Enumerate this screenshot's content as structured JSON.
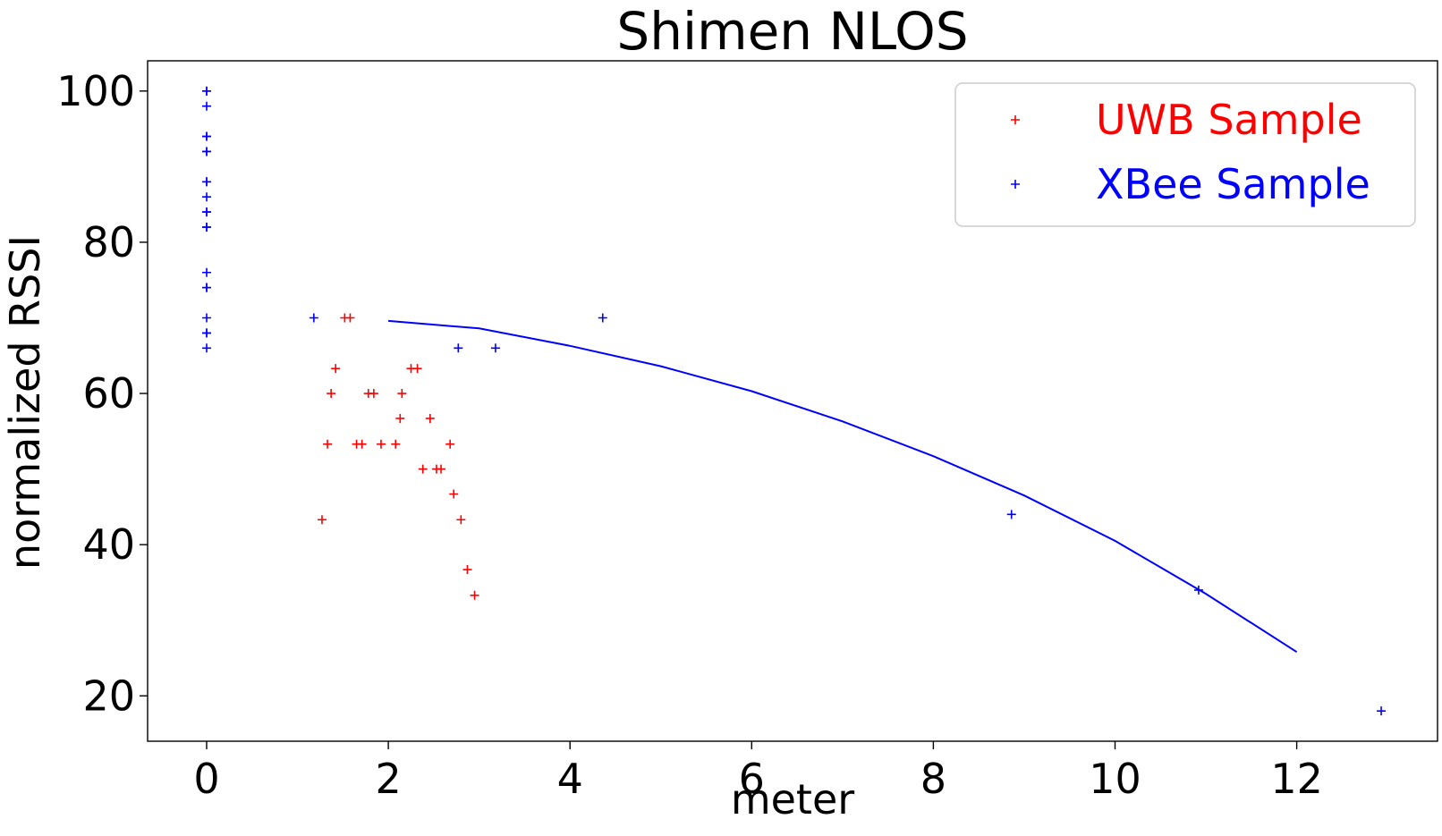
{
  "chart_data": {
    "type": "scatter",
    "title": "Shimen NLOS",
    "xlabel": "meter",
    "ylabel": "normalized RSSI",
    "xlim": [
      -0.65,
      13.55
    ],
    "ylim": [
      14,
      104
    ],
    "xticks": [
      0,
      2,
      4,
      6,
      8,
      10,
      12
    ],
    "yticks": [
      20,
      40,
      60,
      80,
      100
    ],
    "grid": false,
    "legend": {
      "placement": "top-right",
      "entries": [
        "UWB Sample",
        "XBee Sample"
      ]
    },
    "series": [
      {
        "name": "UWB Sample",
        "color": "#ff0000",
        "marker": "plus",
        "points": [
          [
            1.27,
            43.3
          ],
          [
            1.33,
            53.3
          ],
          [
            1.37,
            60.0
          ],
          [
            1.42,
            63.3
          ],
          [
            1.52,
            70.0
          ],
          [
            1.58,
            70.0
          ],
          [
            1.65,
            53.3
          ],
          [
            1.71,
            53.3
          ],
          [
            1.78,
            60.0
          ],
          [
            1.84,
            60.0
          ],
          [
            1.92,
            53.3
          ],
          [
            2.08,
            53.3
          ],
          [
            2.13,
            56.7
          ],
          [
            2.15,
            60.0
          ],
          [
            2.25,
            63.3
          ],
          [
            2.32,
            63.3
          ],
          [
            2.38,
            50.0
          ],
          [
            2.46,
            56.7
          ],
          [
            2.53,
            50.0
          ],
          [
            2.58,
            50.0
          ],
          [
            2.68,
            53.3
          ],
          [
            2.72,
            46.7
          ],
          [
            2.8,
            43.3
          ],
          [
            2.87,
            36.7
          ],
          [
            2.95,
            33.3
          ]
        ]
      },
      {
        "name": "XBee Sample",
        "color": "#0000ff",
        "marker": "plus",
        "points": [
          [
            0,
            100
          ],
          [
            0,
            100
          ],
          [
            0,
            98
          ],
          [
            0,
            94
          ],
          [
            0,
            94
          ],
          [
            0,
            92
          ],
          [
            0,
            92
          ],
          [
            0,
            88
          ],
          [
            0,
            88
          ],
          [
            0,
            86
          ],
          [
            0,
            84
          ],
          [
            0,
            84
          ],
          [
            0,
            82
          ],
          [
            0,
            82
          ],
          [
            0,
            76
          ],
          [
            0,
            74
          ],
          [
            0,
            74
          ],
          [
            0,
            70
          ],
          [
            0,
            68
          ],
          [
            0,
            68
          ],
          [
            0,
            66
          ],
          [
            1.18,
            70
          ],
          [
            2.77,
            66
          ],
          [
            3.18,
            66
          ],
          [
            4.36,
            70
          ],
          [
            8.86,
            44
          ],
          [
            10.92,
            34
          ],
          [
            12.93,
            18
          ]
        ]
      },
      {
        "name": "",
        "color": "#0000ff",
        "marker": "line",
        "points": [
          [
            2,
            69.6
          ],
          [
            3,
            68.6
          ],
          [
            4,
            66.3
          ],
          [
            5,
            63.6
          ],
          [
            6,
            60.3
          ],
          [
            7,
            56.3
          ],
          [
            8,
            51.7
          ],
          [
            9,
            46.5
          ],
          [
            10,
            40.5
          ],
          [
            11,
            33.5
          ],
          [
            12,
            25.8
          ]
        ]
      }
    ]
  }
}
